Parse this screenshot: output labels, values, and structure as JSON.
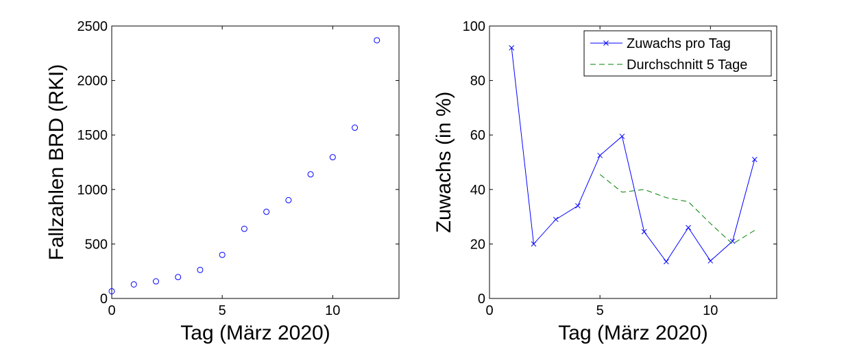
{
  "chart_data": [
    {
      "type": "scatter",
      "xlabel": "Tag (März 2020)",
      "ylabel": "Fallzahlen BRD (RKI)",
      "xlim": [
        0,
        13
      ],
      "ylim": [
        0,
        2500
      ],
      "xticks": [
        0,
        5,
        10
      ],
      "yticks": [
        0,
        500,
        1000,
        1500,
        2000,
        2500
      ],
      "marker_color": "#0000ff",
      "x": [
        0,
        1,
        2,
        3,
        4,
        5,
        6,
        7,
        8,
        9,
        10,
        11,
        12
      ],
      "y": [
        66,
        129,
        157,
        196,
        262,
        400,
        639,
        795,
        902,
        1139,
        1296,
        1567,
        2369
      ]
    },
    {
      "type": "line",
      "xlabel": "Tag (März 2020)",
      "ylabel": "Zuwachs (in %)",
      "xlim": [
        0,
        13
      ],
      "ylim": [
        0,
        100
      ],
      "xticks": [
        0,
        5,
        10
      ],
      "yticks": [
        0,
        20,
        40,
        60,
        80,
        100
      ],
      "legend_position": "top-right",
      "series": [
        {
          "name": "Zuwachs pro Tag",
          "color": "#0000ff",
          "style": "solid-x-marker",
          "x": [
            1,
            2,
            3,
            4,
            5,
            6,
            7,
            8,
            9,
            10,
            11,
            12
          ],
          "y": [
            92,
            20,
            29,
            34,
            52.5,
            59.5,
            24.5,
            13.5,
            26,
            13.8,
            21,
            51
          ]
        },
        {
          "name": "Durchschnitt 5 Tage",
          "color": "#008000",
          "style": "dashed",
          "x": [
            5,
            6,
            7,
            8,
            9,
            10,
            11,
            12
          ],
          "y": [
            45.5,
            39,
            40,
            37,
            35.5,
            27.5,
            20,
            25
          ]
        }
      ]
    }
  ]
}
